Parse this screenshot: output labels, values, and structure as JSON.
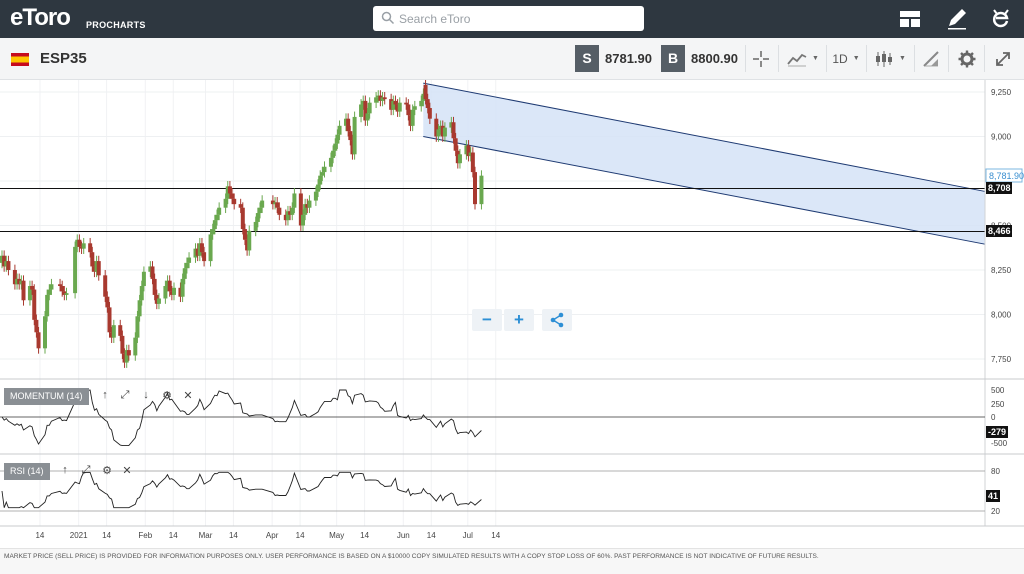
{
  "app": {
    "brand": "eToro",
    "product": "PROCHARTS",
    "search_placeholder": "Search eToro"
  },
  "toolbar": {
    "symbol": "ESP35",
    "sell_tag": "S",
    "sell_price": "8781.90",
    "buy_tag": "B",
    "buy_price": "8800.90",
    "timeframe": "1D"
  },
  "price_axis": {
    "ticks": [
      "9,250",
      "9,000",
      "8,750",
      "8,500",
      "8,250",
      "8,000",
      "7,750"
    ],
    "current_label": "8,781.90",
    "line1_label": "8,708",
    "line2_label": "8,466"
  },
  "time_axis": {
    "ticks": [
      "14",
      "2021",
      "14",
      "Feb",
      "14",
      "Mar",
      "14",
      "Apr",
      "14",
      "May",
      "14",
      "Jun",
      "14",
      "Jul",
      "14"
    ]
  },
  "momentum": {
    "label": "MOMENTUM (14)",
    "ticks": [
      "500",
      "250",
      "0",
      "-500"
    ],
    "current": "-279"
  },
  "rsi": {
    "label": "RSI (14)",
    "ticks": [
      "80",
      "20"
    ],
    "current": "41"
  },
  "zoom": {
    "out": "−",
    "in": "+"
  },
  "footer": {
    "disclaimer": "MARKET PRICE (SELL PRICE) IS PROVIDED FOR INFORMATION PURPOSES ONLY. USER PERFORMANCE IS BASED ON A $10000 COPY SIMULATED RESULTS WITH A COPY STOP LOSS OF 60%. PAST PERFORMANCE IS NOT INDICATIVE OF FUTURE RESULTS."
  },
  "colors": {
    "up": "#6aa84f",
    "down": "#a8392f",
    "channel_fill": "#d5e3f7",
    "channel_stroke": "#1f3b73",
    "topbar": "#2e3740",
    "accent_blue": "#2d8fd5"
  },
  "chart_data": {
    "type": "candlestick",
    "ylim": [
      7650,
      9330
    ],
    "y_ticks": [
      9250,
      9000,
      8750,
      8500,
      8250,
      8000,
      7750
    ],
    "horizontal_lines": [
      8708,
      8466
    ],
    "last_price": 8781.9,
    "channel": {
      "start": {
        "x": "2021-06-14",
        "upper": 9300,
        "lower": 9000
      },
      "end": {
        "x": "2021-07-12",
        "upper": 8770,
        "lower": 8440
      }
    },
    "candles": [
      {
        "x": "2020-12-01",
        "o": 8290,
        "c": 8330
      },
      {
        "x": "2020-12-02",
        "o": 8330,
        "c": 8270
      },
      {
        "x": "2020-12-03",
        "o": 8270,
        "c": 8300
      },
      {
        "x": "2020-12-04",
        "o": 8300,
        "c": 8250
      },
      {
        "x": "2020-12-07",
        "o": 8250,
        "c": 8170
      },
      {
        "x": "2020-12-08",
        "o": 8170,
        "c": 8200
      },
      {
        "x": "2020-12-09",
        "o": 8200,
        "c": 8170
      },
      {
        "x": "2020-12-10",
        "o": 8170,
        "c": 8190
      },
      {
        "x": "2020-12-11",
        "o": 8190,
        "c": 8080
      },
      {
        "x": "2020-12-14",
        "o": 8080,
        "c": 8160
      },
      {
        "x": "2020-12-15",
        "o": 8160,
        "c": 8140
      },
      {
        "x": "2020-12-16",
        "o": 8140,
        "c": 7970
      },
      {
        "x": "2020-12-17",
        "o": 7970,
        "c": 7900
      },
      {
        "x": "2020-12-18",
        "o": 7900,
        "c": 7810
      },
      {
        "x": "2020-12-21",
        "o": 7810,
        "c": 7990
      },
      {
        "x": "2020-12-22",
        "o": 7990,
        "c": 8110
      },
      {
        "x": "2020-12-23",
        "o": 8110,
        "c": 8140
      },
      {
        "x": "2020-12-24",
        "o": 8140,
        "c": 8170
      },
      {
        "x": "2020-12-28",
        "o": 8170,
        "c": 8160
      },
      {
        "x": "2020-12-29",
        "o": 8160,
        "c": 8130
      },
      {
        "x": "2020-12-30",
        "o": 8130,
        "c": 8110
      },
      {
        "x": "2020-12-31",
        "o": 8110,
        "c": 8120
      },
      {
        "x": "2021-01-04",
        "o": 8120,
        "c": 8380
      },
      {
        "x": "2021-01-05",
        "o": 8380,
        "c": 8420
      },
      {
        "x": "2021-01-06",
        "o": 8420,
        "c": 8380
      },
      {
        "x": "2021-01-07",
        "o": 8380,
        "c": 8370
      },
      {
        "x": "2021-01-08",
        "o": 8370,
        "c": 8400
      },
      {
        "x": "2021-01-11",
        "o": 8400,
        "c": 8350
      },
      {
        "x": "2021-01-12",
        "o": 8350,
        "c": 8270
      },
      {
        "x": "2021-01-13",
        "o": 8270,
        "c": 8240
      },
      {
        "x": "2021-01-14",
        "o": 8240,
        "c": 8300
      },
      {
        "x": "2021-01-15",
        "o": 8300,
        "c": 8220
      },
      {
        "x": "2021-01-18",
        "o": 8220,
        "c": 8100
      },
      {
        "x": "2021-01-19",
        "o": 8100,
        "c": 8040
      },
      {
        "x": "2021-01-20",
        "o": 8040,
        "c": 7900
      },
      {
        "x": "2021-01-21",
        "o": 7900,
        "c": 7870
      },
      {
        "x": "2021-01-22",
        "o": 7870,
        "c": 7940
      },
      {
        "x": "2021-01-25",
        "o": 7940,
        "c": 7880
      },
      {
        "x": "2021-01-26",
        "o": 7880,
        "c": 7780
      },
      {
        "x": "2021-01-27",
        "o": 7780,
        "c": 7730
      },
      {
        "x": "2021-01-28",
        "o": 7730,
        "c": 7800
      },
      {
        "x": "2021-01-29",
        "o": 7800,
        "c": 7770
      },
      {
        "x": "2021-02-01",
        "o": 7770,
        "c": 7870
      },
      {
        "x": "2021-02-02",
        "o": 7870,
        "c": 7990
      },
      {
        "x": "2021-02-03",
        "o": 7990,
        "c": 8080
      },
      {
        "x": "2021-02-04",
        "o": 8080,
        "c": 8160
      },
      {
        "x": "2021-02-05",
        "o": 8160,
        "c": 8240
      },
      {
        "x": "2021-02-08",
        "o": 8240,
        "c": 8270
      },
      {
        "x": "2021-02-09",
        "o": 8270,
        "c": 8200
      },
      {
        "x": "2021-02-10",
        "o": 8200,
        "c": 8110
      },
      {
        "x": "2021-02-11",
        "o": 8110,
        "c": 8060
      },
      {
        "x": "2021-02-12",
        "o": 8060,
        "c": 8090
      },
      {
        "x": "2021-02-15",
        "o": 8090,
        "c": 8160
      },
      {
        "x": "2021-02-16",
        "o": 8160,
        "c": 8190
      },
      {
        "x": "2021-02-17",
        "o": 8190,
        "c": 8130
      },
      {
        "x": "2021-02-18",
        "o": 8130,
        "c": 8110
      },
      {
        "x": "2021-02-19",
        "o": 8110,
        "c": 8150
      },
      {
        "x": "2021-02-22",
        "o": 8150,
        "c": 8100
      },
      {
        "x": "2021-02-23",
        "o": 8100,
        "c": 8200
      },
      {
        "x": "2021-02-24",
        "o": 8200,
        "c": 8260
      },
      {
        "x": "2021-02-25",
        "o": 8260,
        "c": 8290
      },
      {
        "x": "2021-02-26",
        "o": 8290,
        "c": 8320
      },
      {
        "x": "2021-03-01",
        "o": 8320,
        "c": 8370
      },
      {
        "x": "2021-03-02",
        "o": 8370,
        "c": 8330
      },
      {
        "x": "2021-03-03",
        "o": 8330,
        "c": 8400
      },
      {
        "x": "2021-03-04",
        "o": 8400,
        "c": 8350
      },
      {
        "x": "2021-03-05",
        "o": 8350,
        "c": 8300
      },
      {
        "x": "2021-03-08",
        "o": 8300,
        "c": 8450
      },
      {
        "x": "2021-03-09",
        "o": 8450,
        "c": 8480
      },
      {
        "x": "2021-03-10",
        "o": 8480,
        "c": 8530
      },
      {
        "x": "2021-03-11",
        "o": 8530,
        "c": 8560
      },
      {
        "x": "2021-03-12",
        "o": 8560,
        "c": 8600
      },
      {
        "x": "2021-03-15",
        "o": 8600,
        "c": 8650
      },
      {
        "x": "2021-03-16",
        "o": 8650,
        "c": 8720
      },
      {
        "x": "2021-03-17",
        "o": 8720,
        "c": 8680
      },
      {
        "x": "2021-03-18",
        "o": 8680,
        "c": 8650
      },
      {
        "x": "2021-03-19",
        "o": 8650,
        "c": 8620
      },
      {
        "x": "2021-03-22",
        "o": 8620,
        "c": 8600
      },
      {
        "x": "2021-03-23",
        "o": 8600,
        "c": 8480
      },
      {
        "x": "2021-03-24",
        "o": 8480,
        "c": 8420
      },
      {
        "x": "2021-03-25",
        "o": 8420,
        "c": 8360
      },
      {
        "x": "2021-03-26",
        "o": 8360,
        "c": 8470
      },
      {
        "x": "2021-03-29",
        "o": 8470,
        "c": 8520
      },
      {
        "x": "2021-03-30",
        "o": 8520,
        "c": 8570
      },
      {
        "x": "2021-03-31",
        "o": 8570,
        "c": 8600
      },
      {
        "x": "2021-04-01",
        "o": 8600,
        "c": 8640
      },
      {
        "x": "2021-04-06",
        "o": 8640,
        "c": 8620
      },
      {
        "x": "2021-04-07",
        "o": 8620,
        "c": 8630
      },
      {
        "x": "2021-04-08",
        "o": 8630,
        "c": 8600
      },
      {
        "x": "2021-04-09",
        "o": 8600,
        "c": 8560
      },
      {
        "x": "2021-04-12",
        "o": 8560,
        "c": 8530
      },
      {
        "x": "2021-04-13",
        "o": 8530,
        "c": 8580
      },
      {
        "x": "2021-04-14",
        "o": 8580,
        "c": 8560
      },
      {
        "x": "2021-04-15",
        "o": 8560,
        "c": 8600
      },
      {
        "x": "2021-04-16",
        "o": 8600,
        "c": 8680
      },
      {
        "x": "2021-04-19",
        "o": 8680,
        "c": 8500
      },
      {
        "x": "2021-04-20",
        "o": 8500,
        "c": 8560
      },
      {
        "x": "2021-04-21",
        "o": 8560,
        "c": 8620
      },
      {
        "x": "2021-04-22",
        "o": 8620,
        "c": 8600
      },
      {
        "x": "2021-04-23",
        "o": 8600,
        "c": 8640
      },
      {
        "x": "2021-04-26",
        "o": 8640,
        "c": 8690
      },
      {
        "x": "2021-04-27",
        "o": 8690,
        "c": 8730
      },
      {
        "x": "2021-04-28",
        "o": 8730,
        "c": 8780
      },
      {
        "x": "2021-04-29",
        "o": 8780,
        "c": 8800
      },
      {
        "x": "2021-04-30",
        "o": 8800,
        "c": 8830
      },
      {
        "x": "2021-05-03",
        "o": 8830,
        "c": 8880
      },
      {
        "x": "2021-05-04",
        "o": 8880,
        "c": 8920
      },
      {
        "x": "2021-05-05",
        "o": 8920,
        "c": 8960
      },
      {
        "x": "2021-05-06",
        "o": 8960,
        "c": 9010
      },
      {
        "x": "2021-05-07",
        "o": 9010,
        "c": 9060
      },
      {
        "x": "2021-05-10",
        "o": 9060,
        "c": 9100
      },
      {
        "x": "2021-05-11",
        "o": 9100,
        "c": 9030
      },
      {
        "x": "2021-05-12",
        "o": 9030,
        "c": 8980
      },
      {
        "x": "2021-05-13",
        "o": 8980,
        "c": 8900
      },
      {
        "x": "2021-05-14",
        "o": 8900,
        "c": 9110
      },
      {
        "x": "2021-05-17",
        "o": 9110,
        "c": 9180
      },
      {
        "x": "2021-05-18",
        "o": 9180,
        "c": 9200
      },
      {
        "x": "2021-05-19",
        "o": 9200,
        "c": 9090
      },
      {
        "x": "2021-05-20",
        "o": 9090,
        "c": 9130
      },
      {
        "x": "2021-05-21",
        "o": 9130,
        "c": 9190
      },
      {
        "x": "2021-05-24",
        "o": 9190,
        "c": 9220
      },
      {
        "x": "2021-05-25",
        "o": 9220,
        "c": 9230
      },
      {
        "x": "2021-05-26",
        "o": 9230,
        "c": 9200
      },
      {
        "x": "2021-05-27",
        "o": 9200,
        "c": 9220
      },
      {
        "x": "2021-05-28",
        "o": 9220,
        "c": 9210
      },
      {
        "x": "2021-05-31",
        "o": 9210,
        "c": 9150
      },
      {
        "x": "2021-06-01",
        "o": 9150,
        "c": 9200
      },
      {
        "x": "2021-06-02",
        "o": 9200,
        "c": 9180
      },
      {
        "x": "2021-06-03",
        "o": 9180,
        "c": 9140
      },
      {
        "x": "2021-06-04",
        "o": 9140,
        "c": 9190
      },
      {
        "x": "2021-06-07",
        "o": 9190,
        "c": 9180
      },
      {
        "x": "2021-06-08",
        "o": 9180,
        "c": 9120
      },
      {
        "x": "2021-06-09",
        "o": 9120,
        "c": 9060
      },
      {
        "x": "2021-06-10",
        "o": 9060,
        "c": 9150
      },
      {
        "x": "2021-06-11",
        "o": 9150,
        "c": 9170
      },
      {
        "x": "2021-06-14",
        "o": 9170,
        "c": 9200
      },
      {
        "x": "2021-06-15",
        "o": 9200,
        "c": 9240
      },
      {
        "x": "2021-06-16",
        "o": 9290,
        "c": 9210
      },
      {
        "x": "2021-06-17",
        "o": 9210,
        "c": 9160
      },
      {
        "x": "2021-06-18",
        "o": 9160,
        "c": 9100
      },
      {
        "x": "2021-06-21",
        "o": 9100,
        "c": 9000
      },
      {
        "x": "2021-06-22",
        "o": 9000,
        "c": 9040
      },
      {
        "x": "2021-06-23",
        "o": 9040,
        "c": 9060
      },
      {
        "x": "2021-06-24",
        "o": 9060,
        "c": 9000
      },
      {
        "x": "2021-06-25",
        "o": 9000,
        "c": 9050
      },
      {
        "x": "2021-06-28",
        "o": 9050,
        "c": 9080
      },
      {
        "x": "2021-06-29",
        "o": 9080,
        "c": 8990
      },
      {
        "x": "2021-06-30",
        "o": 8990,
        "c": 8920
      },
      {
        "x": "2021-07-01",
        "o": 8920,
        "c": 8850
      },
      {
        "x": "2021-07-02",
        "o": 8850,
        "c": 8900
      },
      {
        "x": "2021-07-05",
        "o": 8900,
        "c": 8950
      },
      {
        "x": "2021-07-06",
        "o": 8950,
        "c": 8890
      },
      {
        "x": "2021-07-07",
        "o": 8890,
        "c": 8910
      },
      {
        "x": "2021-07-08",
        "o": 8910,
        "c": 8800
      },
      {
        "x": "2021-07-09",
        "o": 8800,
        "c": 8620
      },
      {
        "x": "2021-07-12",
        "o": 8620,
        "c": 8780
      }
    ]
  }
}
